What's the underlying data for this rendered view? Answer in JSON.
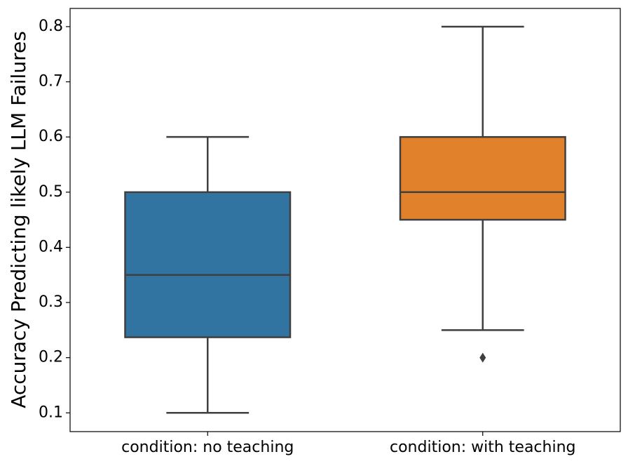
{
  "chart_data": {
    "type": "box",
    "ylabel": "Accuracy Predicting likely LLM Failures",
    "categories": [
      "condition: no teaching",
      "condition: with teaching"
    ],
    "boxes": [
      {
        "color": "#3274a1",
        "whislo": 0.1,
        "q1": 0.237,
        "median": 0.35,
        "q3": 0.5,
        "whishi": 0.6,
        "fliers": []
      },
      {
        "color": "#e1812c",
        "whislo": 0.25,
        "q1": 0.45,
        "median": 0.5,
        "q3": 0.6,
        "whishi": 0.8,
        "fliers": [
          0.2
        ]
      }
    ],
    "ylim": [
      0.066,
      0.833
    ],
    "yticks": [
      0.1,
      0.2,
      0.3,
      0.4,
      0.5,
      0.6,
      0.7,
      0.8
    ]
  }
}
